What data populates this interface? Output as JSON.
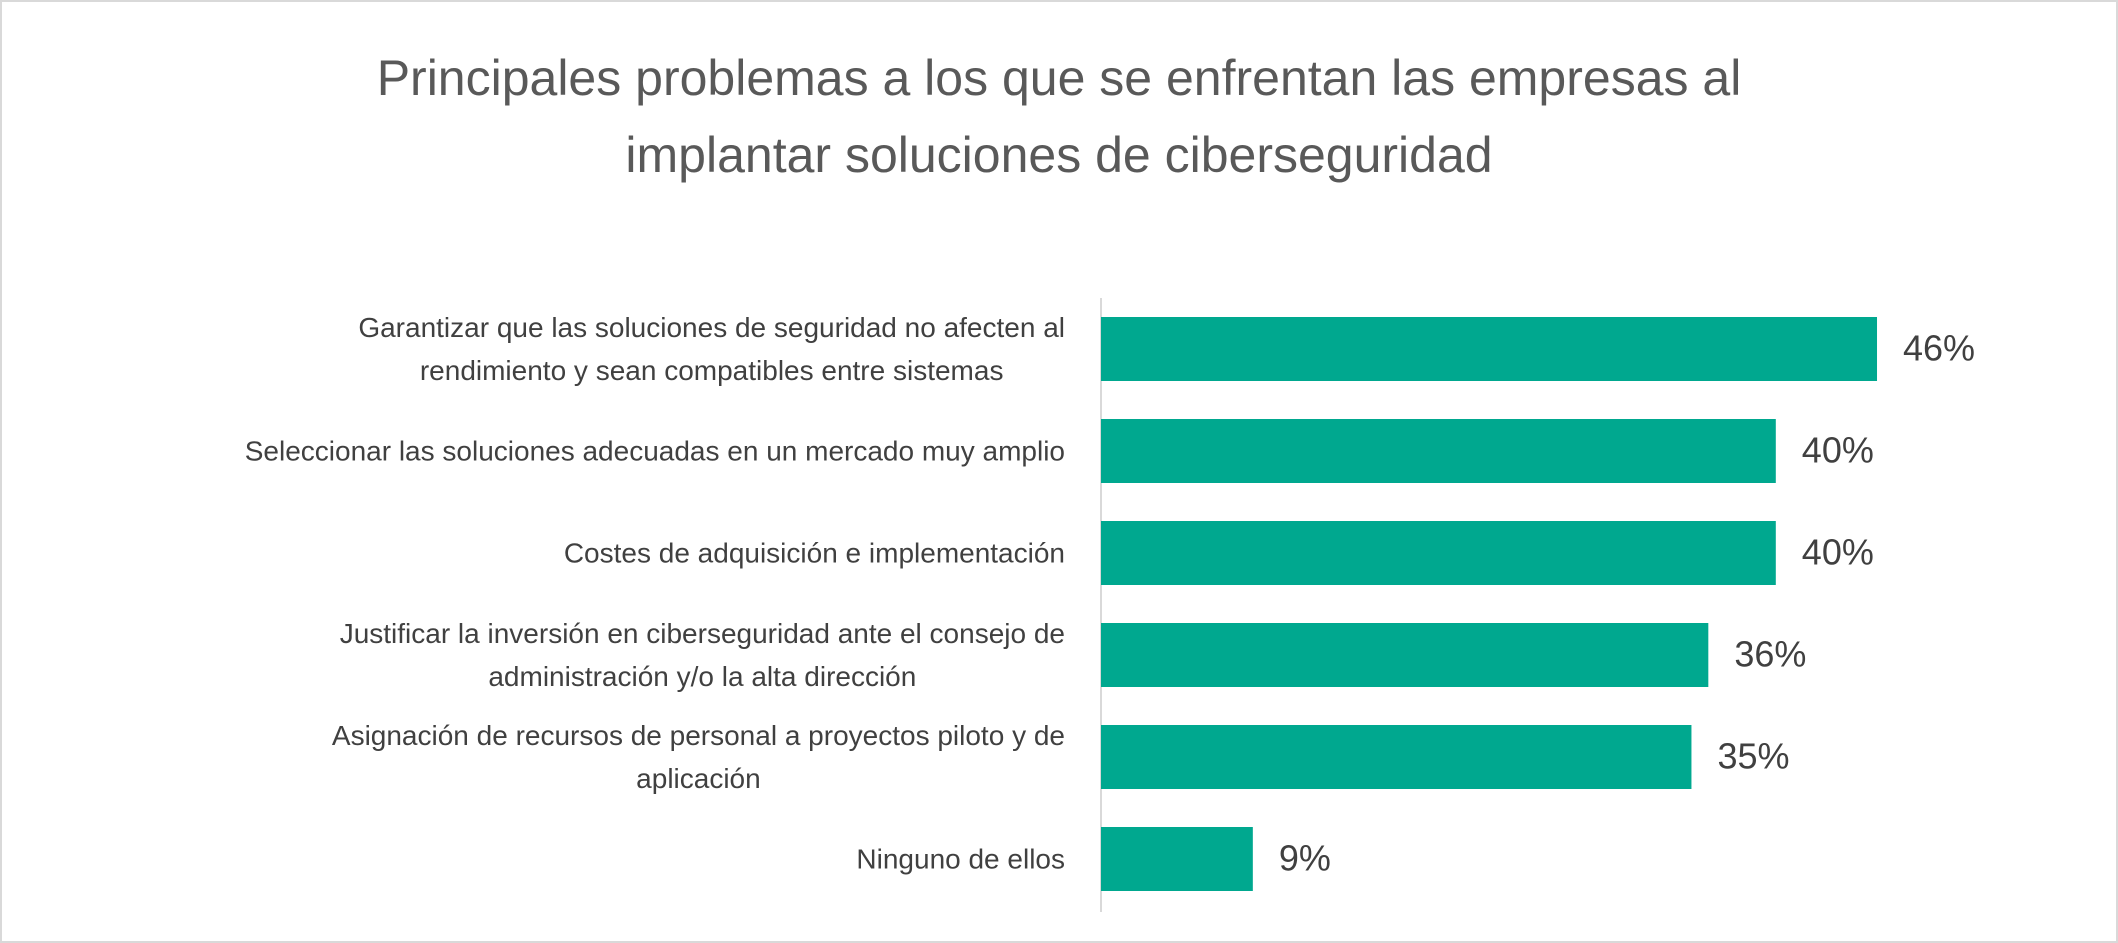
{
  "chart_data": {
    "type": "bar",
    "orientation": "horizontal",
    "title": "Principales problemas a los que se enfrentan las empresas al\nimplantar soluciones de ciberseguridad",
    "categories": [
      "Garantizar que las soluciones de seguridad no afecten al\nrendimiento y sean compatibles entre sistemas",
      "Seleccionar las soluciones adecuadas en un mercado muy amplio",
      "Costes de adquisición e implementación",
      "Justificar la inversión en ciberseguridad ante el consejo de\nadministración y/o la alta dirección",
      "Asignación de recursos de personal a proyectos piloto y de\naplicación",
      "Ninguno de ellos"
    ],
    "values": [
      46,
      40,
      40,
      36,
      35,
      9
    ],
    "value_labels": [
      "46%",
      "40%",
      "40%",
      "36%",
      "35%",
      "9%"
    ],
    "color": "#00a88f"
  }
}
